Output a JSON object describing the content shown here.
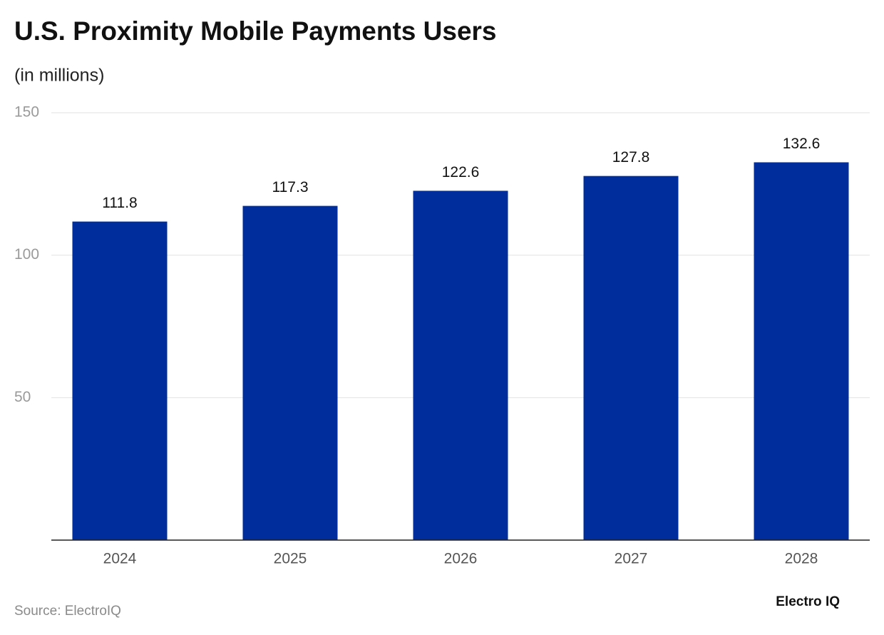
{
  "chart_data": {
    "type": "bar",
    "title": "U.S. Proximity Mobile Payments Users",
    "subtitle": "(in millions)",
    "categories": [
      "2024",
      "2025",
      "2026",
      "2027",
      "2028"
    ],
    "values": [
      111.8,
      117.3,
      122.6,
      127.8,
      132.6
    ],
    "color": "#002d9c",
    "ylim": [
      0,
      150
    ],
    "yticks": [
      50,
      100,
      150
    ],
    "grid": true,
    "source": "Source: ElectroIQ",
    "logo": "Electro IQ"
  }
}
